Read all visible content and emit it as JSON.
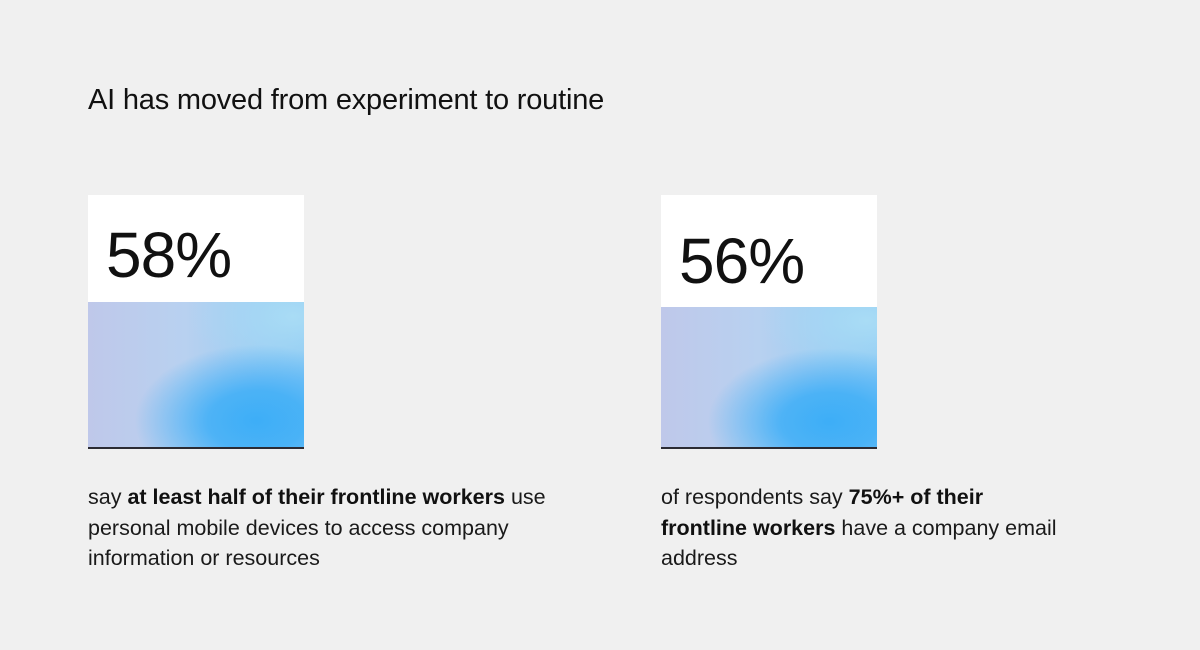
{
  "title": "AI has moved from experiment to routine",
  "chart_data": {
    "type": "bar",
    "title": "AI has moved from experiment to routine",
    "ylim": [
      0,
      100
    ],
    "grid": false,
    "categories": [
      "58%",
      "56%"
    ],
    "values": [
      58,
      56
    ]
  },
  "stats": [
    {
      "value": 58,
      "label": "58%",
      "desc_pre": "say ",
      "desc_bold": "at least half of their frontline workers",
      "desc_post": " use personal mobile devices to access company information or resources",
      "desc_bold2": "",
      "desc_post2": ""
    },
    {
      "value": 56,
      "label": "56%",
      "desc_pre": "of respondents say ",
      "desc_bold": "75%+ of their frontline workers",
      "desc_post": " have a company email address",
      "desc_bold2": "",
      "desc_post2": ""
    }
  ],
  "colors": {
    "background": "#f0f0f0",
    "panel": "#ffffff",
    "fill_accent": "#3daef7",
    "fill_base": "#bfc8ea",
    "baseline": "#2b2b33"
  }
}
